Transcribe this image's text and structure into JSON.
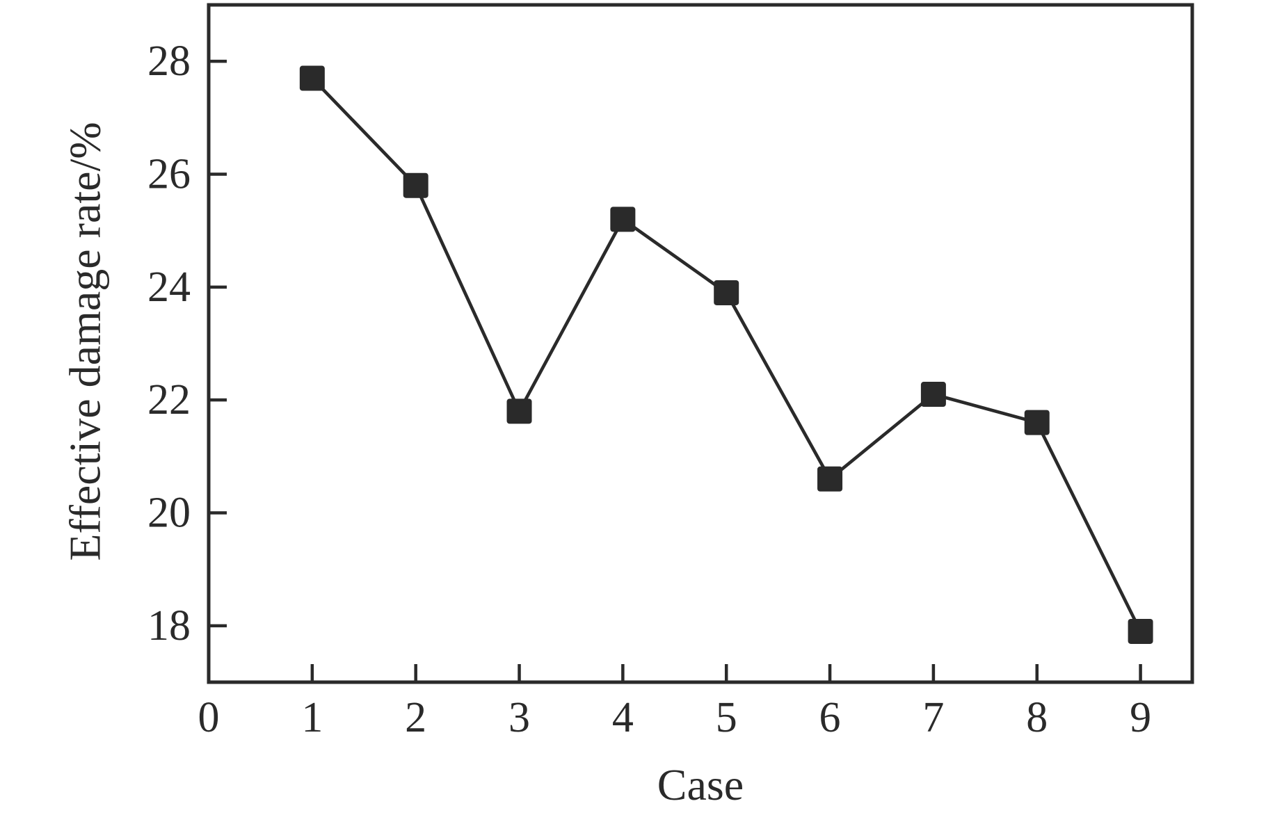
{
  "figure": {
    "background_color": "#ffffff",
    "ink_color": "#2a2a2a"
  },
  "chart_data": {
    "type": "line",
    "title": "",
    "xlabel": "Case",
    "ylabel": "Effective damage rate/%",
    "x": [
      1,
      2,
      3,
      4,
      5,
      6,
      7,
      8,
      9
    ],
    "series": [
      {
        "name": "Effective damage rate",
        "values": [
          27.7,
          25.8,
          21.8,
          25.2,
          23.9,
          20.6,
          22.1,
          21.6,
          17.9
        ]
      }
    ],
    "xlim": [
      0,
      9.5
    ],
    "ylim": [
      17,
      29
    ],
    "x_ticks": [
      0,
      1,
      2,
      3,
      4,
      5,
      6,
      7,
      8,
      9
    ],
    "y_ticks": [
      18,
      20,
      22,
      24,
      26,
      28
    ],
    "grid": false,
    "legend_position": "none",
    "marker_shape": "square",
    "line_color": "#2a2a2a",
    "marker_color": "#2a2a2a"
  }
}
